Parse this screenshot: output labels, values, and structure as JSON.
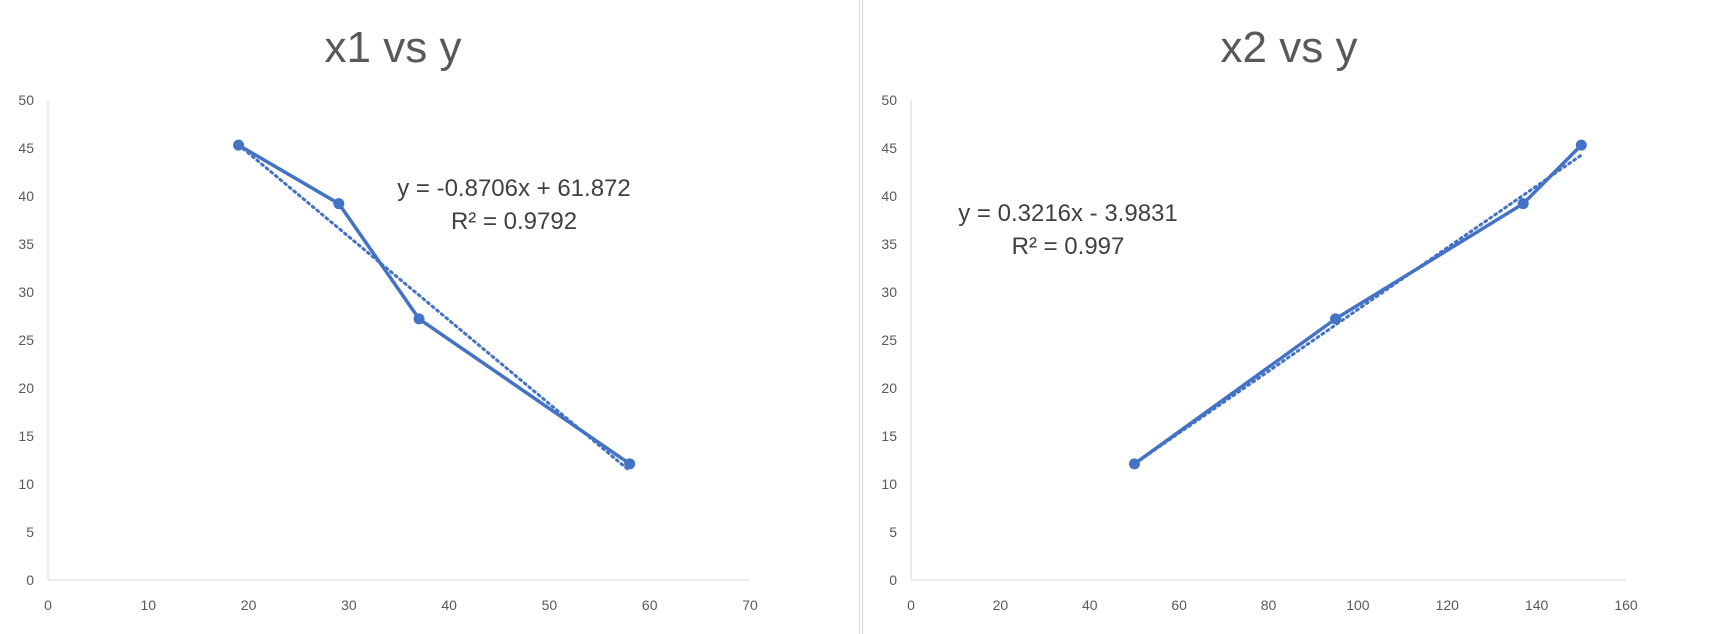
{
  "chart_data": [
    {
      "type": "line",
      "title": "x1 vs y",
      "xlabel": "",
      "ylabel": "",
      "xlim": [
        0,
        70
      ],
      "ylim": [
        0,
        50
      ],
      "xticks": [
        "0",
        "10",
        "20",
        "30",
        "40",
        "50",
        "60",
        "70"
      ],
      "yticks": [
        "0",
        "5",
        "10",
        "15",
        "20",
        "25",
        "30",
        "35",
        "40",
        "45",
        "50"
      ],
      "grid": false,
      "series": [
        {
          "x": [
            19,
            29,
            37,
            58
          ],
          "y": [
            45.3,
            39.2,
            27.2,
            12.1
          ],
          "color": "#4472C4",
          "markers": true
        }
      ],
      "trendline": {
        "type": "linear",
        "slope": -0.8706,
        "intercept": 61.872,
        "x_range": [
          19,
          58
        ],
        "style": "dotted",
        "color": "#4472C4"
      },
      "equation_text": "y = -0.8706x + 61.872",
      "r2_text": "R² = 0.9792"
    },
    {
      "type": "line",
      "title": "x2 vs y",
      "xlabel": "",
      "ylabel": "",
      "xlim": [
        0,
        160
      ],
      "ylim": [
        0,
        50
      ],
      "xticks": [
        "0",
        "20",
        "40",
        "60",
        "80",
        "100",
        "120",
        "140",
        "160"
      ],
      "yticks": [
        "0",
        "5",
        "10",
        "15",
        "20",
        "25",
        "30",
        "35",
        "40",
        "45",
        "50"
      ],
      "grid": false,
      "series": [
        {
          "x": [
            50,
            95,
            137,
            150
          ],
          "y": [
            12.1,
            27.2,
            39.2,
            45.3
          ],
          "color": "#4472C4",
          "markers": true
        }
      ],
      "trendline": {
        "type": "linear",
        "slope": 0.3216,
        "intercept": -3.9831,
        "x_range": [
          50,
          150
        ],
        "style": "dotted",
        "color": "#4472C4"
      },
      "equation_text": "y = 0.3216x - 3.9831",
      "r2_text": "R² = 0.997"
    }
  ]
}
